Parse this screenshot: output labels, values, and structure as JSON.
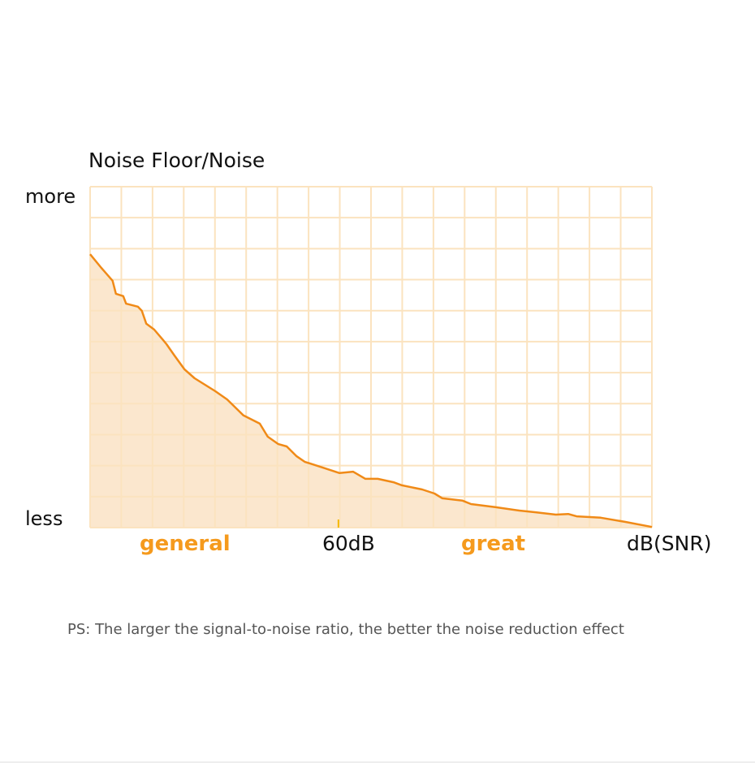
{
  "chart_data": {
    "type": "area",
    "ylabel": "Noise Floor/Noise",
    "y_axis_labels": {
      "top": "more",
      "bottom": "less"
    },
    "xlabel": "dB(SNR)",
    "x_annotations": [
      {
        "label": "general",
        "position": 0.165,
        "color": "#f59a1d"
      },
      {
        "label": "60dB",
        "position": 0.442,
        "color": "#111111",
        "tick": true
      },
      {
        "label": "great",
        "position": 0.71,
        "color": "#f59a1d"
      }
    ],
    "xlim": [
      0,
      1
    ],
    "ylim": [
      0,
      1
    ],
    "grid": true,
    "grid_divisions": {
      "x": 18,
      "y": 11
    },
    "colors": {
      "line": "#f08a17",
      "fill": "#f9dfbd",
      "grid": "#fbe3bf",
      "tick": "#f5b800"
    },
    "points": [
      [
        0,
        0.802
      ],
      [
        0.02,
        0.762
      ],
      [
        0.04,
        0.724
      ],
      [
        0.046,
        0.686
      ],
      [
        0.059,
        0.679
      ],
      [
        0.064,
        0.657
      ],
      [
        0.085,
        0.648
      ],
      [
        0.092,
        0.636
      ],
      [
        0.1,
        0.598
      ],
      [
        0.114,
        0.581
      ],
      [
        0.129,
        0.552
      ],
      [
        0.136,
        0.538
      ],
      [
        0.15,
        0.505
      ],
      [
        0.168,
        0.464
      ],
      [
        0.186,
        0.438
      ],
      [
        0.223,
        0.4
      ],
      [
        0.244,
        0.376
      ],
      [
        0.273,
        0.329
      ],
      [
        0.302,
        0.305
      ],
      [
        0.316,
        0.267
      ],
      [
        0.335,
        0.245
      ],
      [
        0.35,
        0.238
      ],
      [
        0.367,
        0.21
      ],
      [
        0.382,
        0.193
      ],
      [
        0.418,
        0.174
      ],
      [
        0.444,
        0.16
      ],
      [
        0.468,
        0.164
      ],
      [
        0.49,
        0.143
      ],
      [
        0.512,
        0.143
      ],
      [
        0.54,
        0.133
      ],
      [
        0.555,
        0.124
      ],
      [
        0.591,
        0.112
      ],
      [
        0.613,
        0.1
      ],
      [
        0.627,
        0.086
      ],
      [
        0.663,
        0.079
      ],
      [
        0.678,
        0.069
      ],
      [
        0.721,
        0.06
      ],
      [
        0.764,
        0.05
      ],
      [
        0.793,
        0.045
      ],
      [
        0.829,
        0.038
      ],
      [
        0.851,
        0.04
      ],
      [
        0.866,
        0.033
      ],
      [
        0.909,
        0.029
      ],
      [
        0.952,
        0.017
      ],
      [
        1.0,
        0.002
      ]
    ]
  },
  "note": "PS: The larger the signal-to-noise ratio, the better the noise reduction effect"
}
